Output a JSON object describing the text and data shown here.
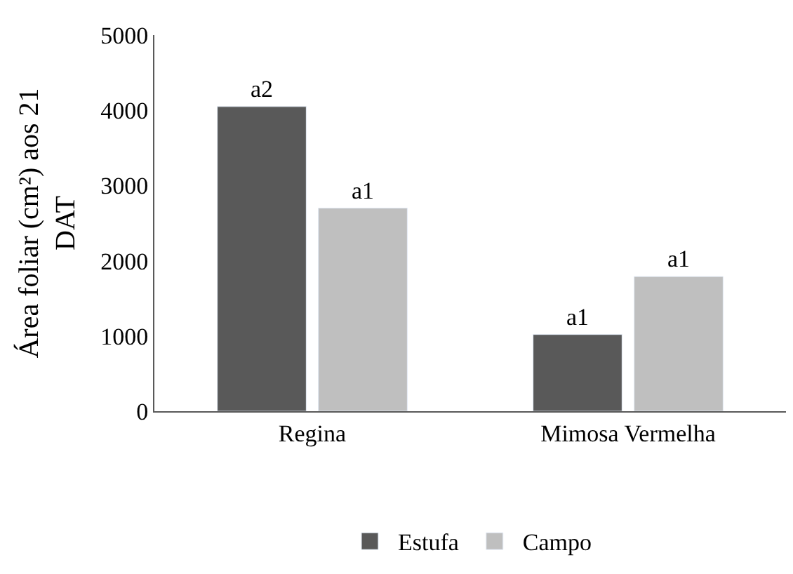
{
  "chart_data": {
    "type": "bar",
    "ylabel": "Área foliar (cm²) aos 21 DAT",
    "categories": [
      "Regina",
      "Mimosa Vermelha"
    ],
    "series": [
      {
        "name": "Estufa",
        "color": "#595959",
        "values": [
          4050,
          1020
        ],
        "value_labels": [
          "a2",
          "a1"
        ]
      },
      {
        "name": "Campo",
        "color": "#bfbfbf",
        "values": [
          2700,
          1790
        ],
        "value_labels": [
          "a1",
          "a1"
        ]
      }
    ],
    "ylim": [
      0,
      5000
    ],
    "yticks": [
      0,
      1000,
      2000,
      3000,
      4000,
      5000
    ],
    "legend": "bottom"
  }
}
